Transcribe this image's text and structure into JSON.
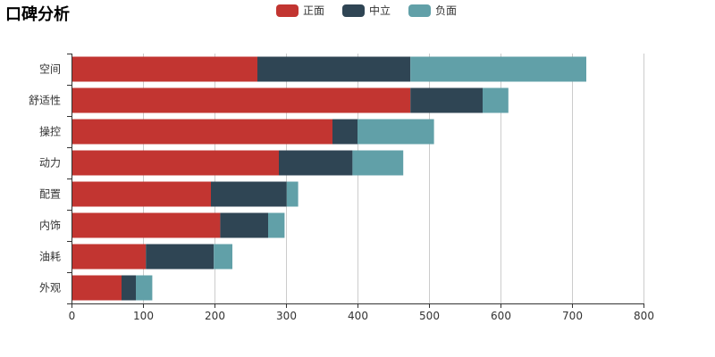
{
  "chart_data": {
    "type": "bar",
    "orientation": "horizontal",
    "stacked": true,
    "title": "口碑分析",
    "categories": [
      "空间",
      "舒适性",
      "操控",
      "动力",
      "配置",
      "内饰",
      "油耗",
      "外观"
    ],
    "series": [
      {
        "name": "正面",
        "color": "#c23531",
        "values": [
          260,
          474,
          365,
          290,
          195,
          208,
          104,
          70
        ]
      },
      {
        "name": "中立",
        "color": "#2f4554",
        "values": [
          214,
          101,
          35,
          103,
          106,
          67,
          95,
          20
        ]
      },
      {
        "name": "负面",
        "color": "#61a0a8",
        "values": [
          246,
          36,
          107,
          71,
          16,
          23,
          26,
          23
        ]
      }
    ],
    "x_ticks": [
      "0",
      "100",
      "200",
      "300",
      "400",
      "500",
      "600",
      "700",
      "800"
    ],
    "xlim": [
      0,
      800
    ],
    "legend_position": "top-center",
    "grid": "vertical"
  }
}
